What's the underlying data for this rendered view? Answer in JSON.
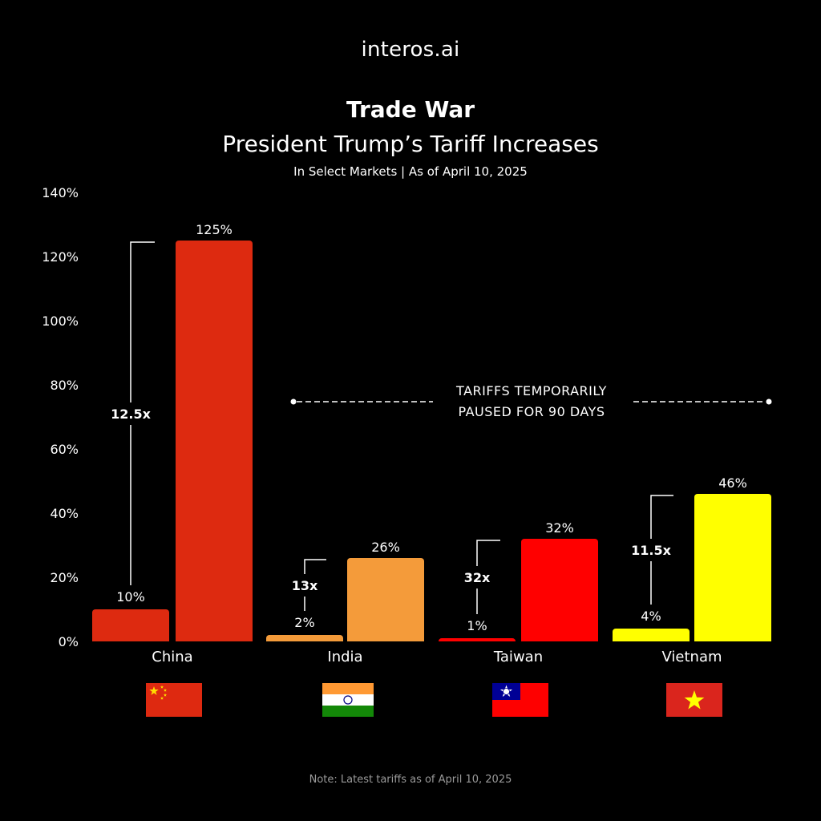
{
  "brand": {
    "logo_text": "interos.ai"
  },
  "header": {
    "title": "Trade War",
    "subtitle": "President Trump’s Tariff Increases",
    "subsubtitle": "In Select Markets | As of April 10, 2025"
  },
  "footer": {
    "note": "Note: Latest tariffs as of April 10, 2025"
  },
  "chart_data": {
    "type": "bar",
    "title": "Trade War",
    "subtitle": "President Trump’s Tariff Increases",
    "xlabel": "",
    "ylabel": "",
    "ylim": [
      0,
      140
    ],
    "y_ticks": [
      0,
      20,
      40,
      60,
      80,
      100,
      120,
      140
    ],
    "y_tick_labels": [
      "0%",
      "20%",
      "40%",
      "60%",
      "80%",
      "100%",
      "120%",
      "140%"
    ],
    "grid": false,
    "categories": [
      "China",
      "India",
      "Taiwan",
      "Vietnam"
    ],
    "series": [
      {
        "values": [
          10,
          2,
          1,
          4
        ],
        "labels": [
          "10%",
          "2%",
          "1%",
          "4%"
        ]
      },
      {
        "values": [
          125,
          26,
          32,
          46
        ],
        "labels": [
          "125%",
          "26%",
          "32%",
          "46%"
        ]
      }
    ],
    "multipliers": [
      "12.5x",
      "13x",
      "32x",
      "11.5x"
    ],
    "colors": [
      "#DD2A10",
      "#F49B3A",
      "#FF0000",
      "#FFFF00"
    ],
    "flags": [
      "china-flag-icon",
      "india-flag-icon",
      "taiwan-flag-icon",
      "vietnam-flag-icon"
    ],
    "annotation": {
      "lines": [
        "TARIFFS TEMPORARILY",
        "PAUSED FOR 90 DAYS"
      ],
      "ylevel": 74
    }
  }
}
